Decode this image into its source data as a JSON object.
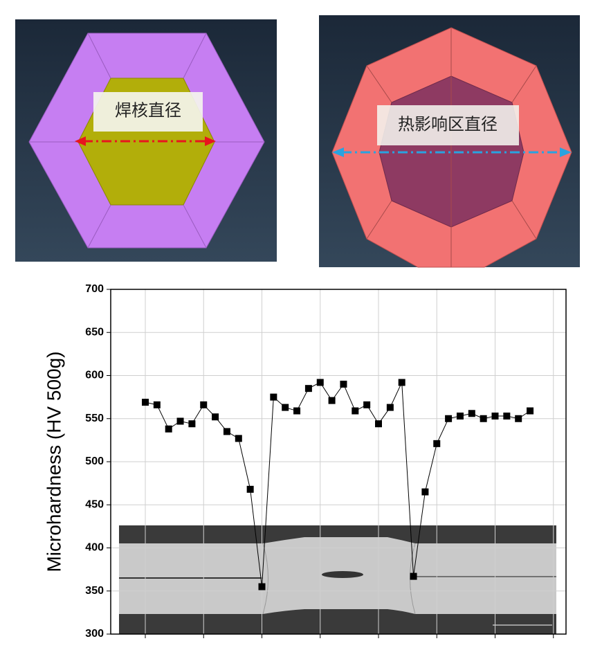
{
  "diagrams": [
    {
      "label": "焊核直径"
    },
    {
      "label": "热影响区直径"
    }
  ],
  "chart_data": {
    "type": "line",
    "y_label": "Microhardness (HV 500g)",
    "categories": [
      null,
      null,
      null,
      null,
      null,
      null,
      null,
      null,
      null,
      null,
      null,
      null,
      null,
      null,
      null,
      null,
      null,
      null,
      null,
      null,
      null,
      null,
      null,
      null,
      null,
      null,
      null,
      null,
      null,
      null,
      null,
      null,
      null,
      null
    ],
    "values": [
      569,
      566,
      538,
      547,
      544,
      566,
      552,
      535,
      527,
      468,
      355,
      575,
      563,
      559,
      585,
      592,
      571,
      590,
      559,
      566,
      544,
      563,
      592,
      367,
      465,
      521,
      550,
      553,
      556,
      550,
      553,
      553,
      550,
      559
    ],
    "color": "#000000",
    "ylim": [
      300,
      700
    ],
    "yticks": [
      300,
      350,
      400,
      450,
      500,
      550,
      600,
      650,
      700
    ],
    "grid": true
  }
}
